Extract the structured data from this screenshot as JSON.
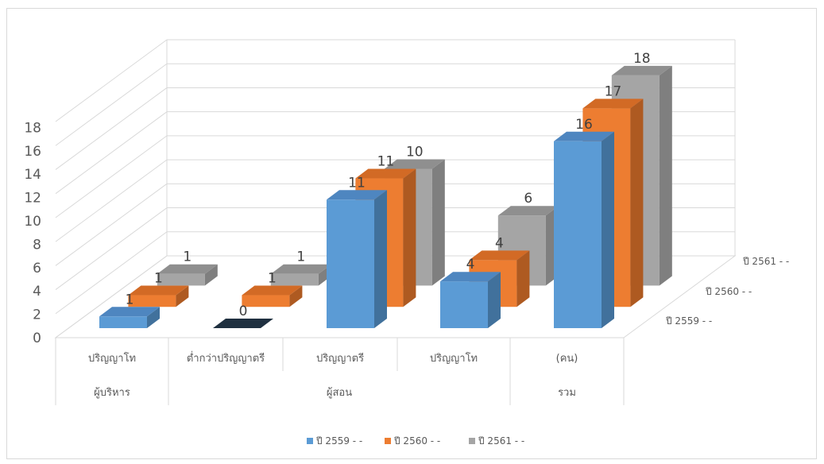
{
  "chart_data": {
    "type": "bar",
    "categories": [
      "ปริญญาโท",
      "ต่ำกว่าปริญญาตรี",
      "ปริญญาตรี",
      "ปริญญาโท",
      "(คน)"
    ],
    "groups": [
      {
        "label": "ผู้บริหาร"
      },
      {
        "label": "ผู้สอน"
      },
      {
        "label": "รวม"
      }
    ],
    "series": [
      {
        "name": "ปี 2559 - -",
        "values": [
          1,
          0,
          11,
          4,
          16
        ]
      },
      {
        "name": "ปี 2560 - -",
        "values": [
          1,
          1,
          11,
          4,
          17
        ]
      },
      {
        "name": "ปี 2561 - -",
        "values": [
          1,
          1,
          10,
          6,
          18
        ]
      }
    ],
    "data_labels": [
      [
        "1",
        "0",
        "11",
        "4",
        "16"
      ],
      [
        "1",
        "1",
        "11",
        "4",
        "17"
      ],
      [
        "1",
        "1",
        "10",
        "6",
        "18"
      ]
    ],
    "y_ticks": [
      "0",
      "2",
      "4",
      "6",
      "8",
      "10",
      "12",
      "14",
      "16",
      "18"
    ],
    "ylim": [
      0,
      18
    ],
    "legend_position": "bottom",
    "colors": {
      "ปี 2559 - -": {
        "front": "#5b9bd5",
        "top": "#4e86c0",
        "side": "#41719c"
      },
      "ปี 2560 - -": {
        "front": "#ed7d31",
        "top": "#d26a25",
        "side": "#ae5a21"
      },
      "ปี 2561 - -": {
        "front": "#a5a5a5",
        "top": "#8f8f8f",
        "side": "#7f7f7f"
      },
      "zero_bar": "#1f3040"
    }
  }
}
